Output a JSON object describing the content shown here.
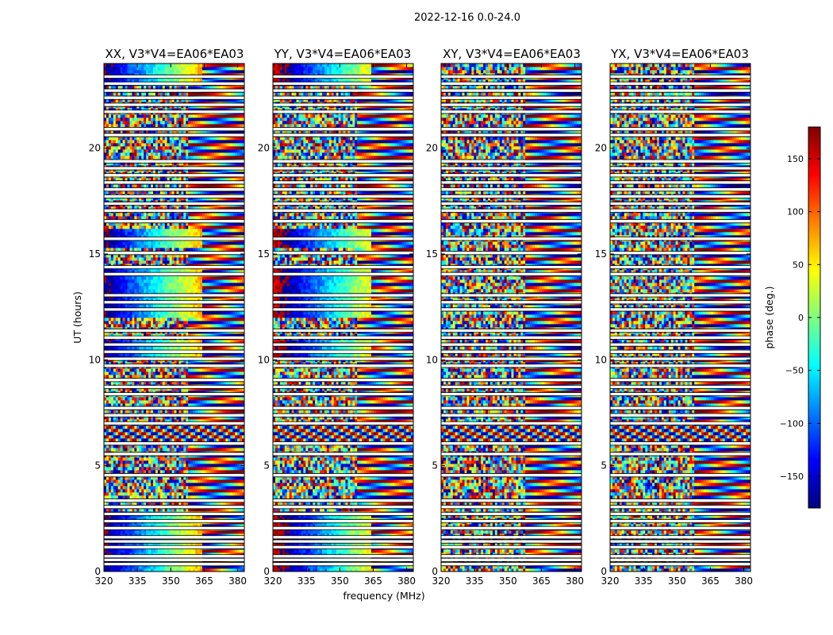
{
  "figure": {
    "suptitle": "2022-12-16 0.0-24.0"
  },
  "chart_data": {
    "type": "heatmap",
    "suptitle": "2022-12-16 0.0-24.0",
    "xlabel": "frequency (MHz)",
    "ylabel": "UT (hours)",
    "xlim": [
      320,
      383
    ],
    "ylim": [
      0,
      24
    ],
    "xticks": [
      320,
      335,
      350,
      365,
      380
    ],
    "yticks": [
      0,
      5,
      10,
      15,
      20
    ],
    "panels": [
      {
        "title": "XX, V3*V4=EA06*EA03",
        "pol": "XX"
      },
      {
        "title": "YY, V3*V4=EA06*EA03",
        "pol": "YY"
      },
      {
        "title": "XY, V3*V4=EA06*EA03",
        "pol": "XY"
      },
      {
        "title": "YX, V3*V4=EA06*EA03",
        "pol": "YX"
      }
    ],
    "colorbar": {
      "label": "phase (deg.)",
      "range": [
        -180,
        180
      ],
      "ticks": [
        150,
        100,
        50,
        0,
        -50,
        -100,
        -150
      ],
      "tick_labels": [
        "150",
        "100",
        "50",
        "0",
        "−50",
        "−100",
        "−150"
      ],
      "colormap": "jet",
      "stops": [
        "#00007f",
        "#0000ff",
        "#007fff",
        "#00ffff",
        "#7fff7f",
        "#ffff00",
        "#ff7f00",
        "#ff0000",
        "#7f0000"
      ]
    },
    "flagged_gaps_ut": [
      0.35,
      0.55,
      0.72,
      1.15,
      1.42,
      1.62,
      2.05,
      2.38,
      2.72,
      3.05,
      3.35,
      4.55,
      5.55,
      6.05,
      7.0,
      7.38,
      7.72,
      8.38,
      8.72,
      9.05,
      9.72,
      10.05,
      10.38,
      10.72,
      11.05,
      11.38,
      12.38,
      12.72,
      13.05,
      14.05,
      14.38,
      15.05,
      15.72,
      16.55,
      17.05,
      17.38,
      17.72,
      18.05,
      18.38,
      18.72,
      19.05,
      19.38,
      20.62,
      20.9,
      21.72,
      22.05,
      22.38,
      22.72,
      23.05,
      23.38
    ]
  }
}
